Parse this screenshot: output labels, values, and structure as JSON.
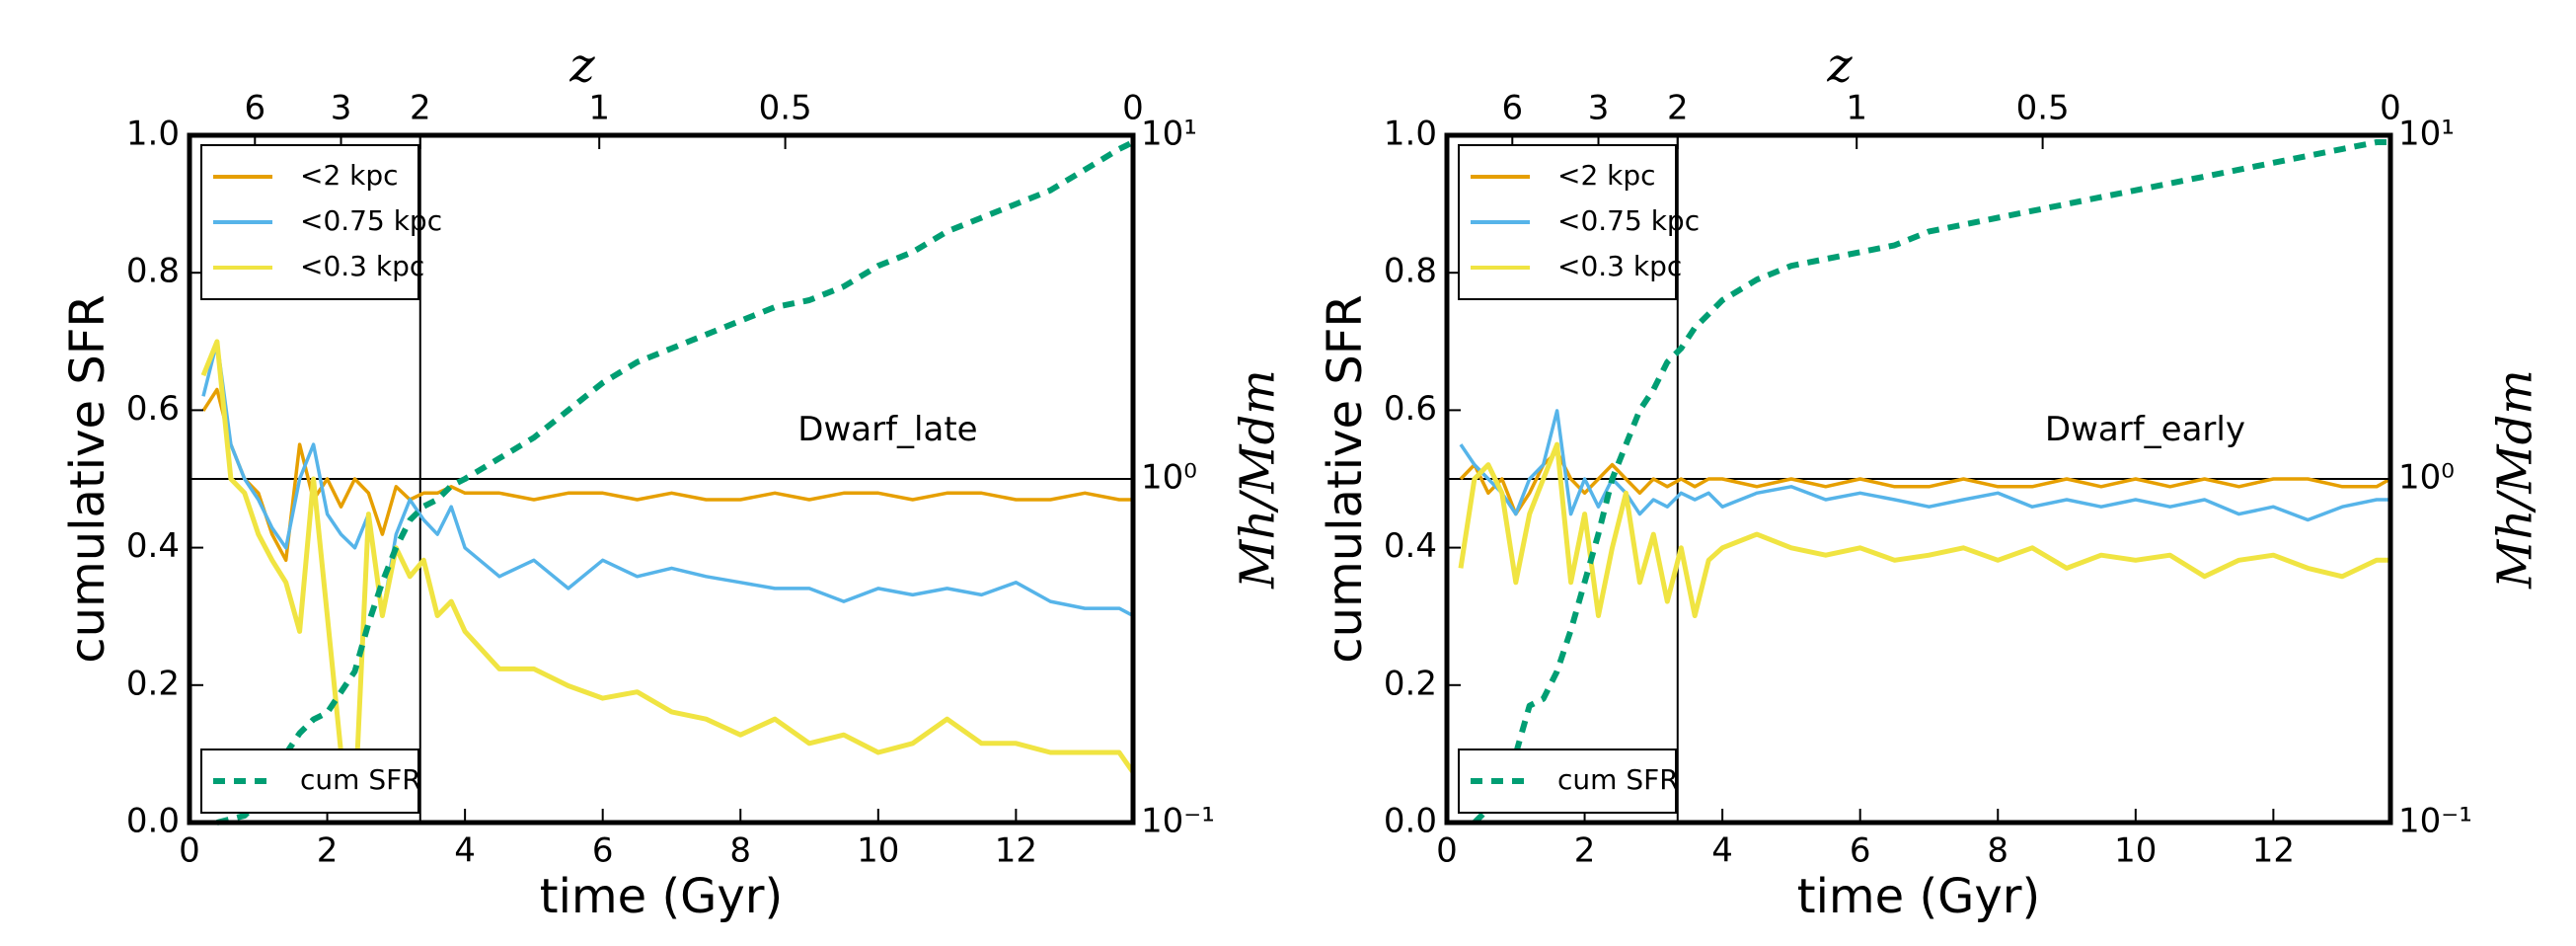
{
  "chart_data": [
    {
      "type": "line",
      "annotation": "Dwarf_late",
      "xlabel": "time (Gyr)",
      "ylabel": "cumulative SFR",
      "y2label": "Mh/Mdm",
      "xlabel_top": "z",
      "xlim": [
        0,
        13.7
      ],
      "xticks": [
        0,
        2,
        4,
        6,
        8,
        10,
        12
      ],
      "xticks_top": [
        {
          "value": 0.95,
          "label": "6"
        },
        {
          "value": 2.2,
          "label": "3"
        },
        {
          "value": 3.35,
          "label": "2"
        },
        {
          "value": 5.95,
          "label": "1"
        },
        {
          "value": 8.65,
          "label": "0.5"
        },
        {
          "value": 13.7,
          "label": "0"
        }
      ],
      "ylim": [
        0,
        1
      ],
      "yticks": [
        {
          "value": 0,
          "label": "0.0"
        },
        {
          "value": 0.2,
          "label": "0.2"
        },
        {
          "value": 0.4,
          "label": "0.4"
        },
        {
          "value": 0.6,
          "label": "0.6"
        },
        {
          "value": 0.8,
          "label": "0.8"
        },
        {
          "value": 1,
          "label": "1.0"
        }
      ],
      "y2lim": [
        0.1,
        10
      ],
      "y2ticks": [
        {
          "value": 0.1,
          "label": "10⁻¹"
        },
        {
          "value": 1,
          "label": "10⁰"
        },
        {
          "value": 10,
          "label": "10¹"
        }
      ],
      "y2scale": "log",
      "vline": 3.35,
      "hline_y2": 1,
      "legend": "upper left",
      "legend2": "lower left",
      "x": [
        0.2,
        0.4,
        0.6,
        0.8,
        1.0,
        1.2,
        1.4,
        1.6,
        1.8,
        2.0,
        2.2,
        2.4,
        2.6,
        2.8,
        3.0,
        3.2,
        3.4,
        3.6,
        3.8,
        4.0,
        4.5,
        5.0,
        5.5,
        6.0,
        6.5,
        7.0,
        7.5,
        8.0,
        8.5,
        9.0,
        9.5,
        10.0,
        10.5,
        11.0,
        11.5,
        12.0,
        12.5,
        13.0,
        13.5,
        13.7
      ],
      "series": [
        {
          "name": "<2 kpc",
          "color": "#e69f00",
          "axis": "y2",
          "values": [
            1.58,
            1.82,
            1.26,
            1.0,
            0.91,
            0.69,
            0.58,
            1.26,
            0.87,
            1.0,
            0.83,
            1.0,
            0.91,
            0.69,
            0.95,
            0.87,
            0.91,
            0.91,
            0.95,
            0.91,
            0.91,
            0.87,
            0.91,
            0.91,
            0.87,
            0.91,
            0.87,
            0.87,
            0.91,
            0.87,
            0.91,
            0.91,
            0.87,
            0.91,
            0.91,
            0.87,
            0.87,
            0.91,
            0.87,
            0.87
          ]
        },
        {
          "name": "<0.75 kpc",
          "color": "#56b4e9",
          "axis": "y2",
          "values": [
            1.74,
            2.51,
            1.26,
            1.0,
            0.87,
            0.72,
            0.63,
            1.0,
            1.26,
            0.79,
            0.69,
            0.63,
            0.79,
            0.4,
            0.69,
            0.87,
            0.76,
            0.69,
            0.83,
            0.63,
            0.52,
            0.58,
            0.48,
            0.58,
            0.52,
            0.55,
            0.52,
            0.5,
            0.48,
            0.48,
            0.44,
            0.48,
            0.46,
            0.48,
            0.46,
            0.5,
            0.44,
            0.42,
            0.42,
            0.4
          ]
        },
        {
          "name": "<0.3 kpc",
          "color": "#f0e442",
          "axis": "y2",
          "values": [
            2.0,
            2.51,
            1.0,
            0.91,
            0.69,
            0.58,
            0.5,
            0.36,
            1.0,
            0.4,
            0.16,
            0.11,
            0.79,
            0.4,
            0.63,
            0.52,
            0.58,
            0.4,
            0.44,
            0.36,
            0.28,
            0.28,
            0.25,
            0.23,
            0.24,
            0.21,
            0.2,
            0.18,
            0.2,
            0.17,
            0.18,
            0.16,
            0.17,
            0.2,
            0.17,
            0.17,
            0.16,
            0.16,
            0.16,
            0.14
          ]
        },
        {
          "name": "cum SFR",
          "color": "#009e73",
          "axis": "y",
          "dashed": true,
          "values": [
            null,
            0.0,
            0.005,
            0.01,
            0.03,
            0.06,
            0.1,
            0.13,
            0.15,
            0.16,
            0.19,
            0.22,
            0.29,
            0.35,
            0.4,
            0.44,
            0.46,
            0.47,
            0.49,
            0.5,
            0.53,
            0.56,
            0.6,
            0.64,
            0.67,
            0.69,
            0.71,
            0.73,
            0.75,
            0.76,
            0.78,
            0.81,
            0.83,
            0.86,
            0.88,
            0.9,
            0.92,
            0.95,
            0.98,
            0.99
          ]
        }
      ]
    },
    {
      "type": "line",
      "annotation": "Dwarf_early",
      "xlabel": "time (Gyr)",
      "ylabel": "cumulative SFR",
      "y2label": "Mh/Mdm",
      "xlabel_top": "z",
      "xlim": [
        0,
        13.7
      ],
      "xticks": [
        0,
        2,
        4,
        6,
        8,
        10,
        12
      ],
      "xticks_top": [
        {
          "value": 0.95,
          "label": "6"
        },
        {
          "value": 2.2,
          "label": "3"
        },
        {
          "value": 3.35,
          "label": "2"
        },
        {
          "value": 5.95,
          "label": "1"
        },
        {
          "value": 8.65,
          "label": "0.5"
        },
        {
          "value": 13.7,
          "label": "0"
        }
      ],
      "ylim": [
        0,
        1
      ],
      "yticks": [
        {
          "value": 0,
          "label": "0.0"
        },
        {
          "value": 0.2,
          "label": "0.2"
        },
        {
          "value": 0.4,
          "label": "0.4"
        },
        {
          "value": 0.6,
          "label": "0.6"
        },
        {
          "value": 0.8,
          "label": "0.8"
        },
        {
          "value": 1,
          "label": "1.0"
        }
      ],
      "y2lim": [
        0.1,
        10
      ],
      "y2ticks": [
        {
          "value": 0.1,
          "label": "10⁻¹"
        },
        {
          "value": 1,
          "label": "10⁰"
        },
        {
          "value": 10,
          "label": "10¹"
        }
      ],
      "y2scale": "log",
      "vline": 3.35,
      "hline_y2": 1,
      "legend": "upper left",
      "legend2": "lower left",
      "x": [
        0.2,
        0.4,
        0.6,
        0.8,
        1.0,
        1.2,
        1.4,
        1.6,
        1.8,
        2.0,
        2.2,
        2.4,
        2.6,
        2.8,
        3.0,
        3.2,
        3.4,
        3.6,
        3.8,
        4.0,
        4.5,
        5.0,
        5.5,
        6.0,
        6.5,
        7.0,
        7.5,
        8.0,
        8.5,
        9.0,
        9.5,
        10.0,
        10.5,
        11.0,
        11.5,
        12.0,
        12.5,
        13.0,
        13.5,
        13.7
      ],
      "series": [
        {
          "name": "<2 kpc",
          "color": "#e69f00",
          "axis": "y2",
          "values": [
            1.0,
            1.1,
            0.91,
            1.0,
            0.79,
            0.91,
            1.1,
            1.2,
            1.0,
            0.91,
            1.0,
            1.1,
            1.0,
            0.91,
            1.0,
            0.95,
            1.0,
            0.95,
            1.0,
            1.0,
            0.95,
            1.0,
            0.95,
            1.0,
            0.95,
            0.95,
            1.0,
            0.95,
            0.95,
            1.0,
            0.95,
            1.0,
            0.95,
            1.0,
            0.95,
            1.0,
            1.0,
            0.95,
            0.95,
            1.0
          ]
        },
        {
          "name": "<0.75 kpc",
          "color": "#56b4e9",
          "axis": "y2",
          "values": [
            1.26,
            1.1,
            1.0,
            0.91,
            0.79,
            1.0,
            1.1,
            1.58,
            0.79,
            1.0,
            0.83,
            1.0,
            0.91,
            0.79,
            0.87,
            0.83,
            0.91,
            0.87,
            0.91,
            0.83,
            0.91,
            0.95,
            0.87,
            0.91,
            0.87,
            0.83,
            0.87,
            0.91,
            0.83,
            0.87,
            0.83,
            0.87,
            0.83,
            0.87,
            0.79,
            0.83,
            0.76,
            0.83,
            0.87,
            0.87
          ]
        },
        {
          "name": "<0.3 kpc",
          "color": "#f0e442",
          "axis": "y2",
          "values": [
            0.55,
            1.0,
            1.1,
            0.91,
            0.5,
            0.79,
            1.0,
            1.26,
            0.5,
            0.79,
            0.4,
            0.63,
            0.91,
            0.5,
            0.69,
            0.44,
            0.63,
            0.4,
            0.58,
            0.63,
            0.69,
            0.63,
            0.6,
            0.63,
            0.58,
            0.6,
            0.63,
            0.58,
            0.63,
            0.55,
            0.6,
            0.58,
            0.6,
            0.52,
            0.58,
            0.6,
            0.55,
            0.52,
            0.58,
            0.58
          ]
        },
        {
          "name": "cum SFR",
          "color": "#009e73",
          "axis": "y",
          "dashed": true,
          "values": [
            null,
            0.0,
            0.02,
            0.05,
            0.1,
            0.17,
            0.18,
            0.22,
            0.28,
            0.35,
            0.42,
            0.5,
            0.55,
            0.6,
            0.63,
            0.67,
            0.69,
            0.72,
            0.74,
            0.76,
            0.79,
            0.81,
            0.82,
            0.83,
            0.84,
            0.86,
            0.87,
            0.88,
            0.89,
            0.9,
            0.91,
            0.92,
            0.93,
            0.94,
            0.95,
            0.96,
            0.97,
            0.98,
            0.99,
            0.99
          ]
        }
      ]
    }
  ]
}
